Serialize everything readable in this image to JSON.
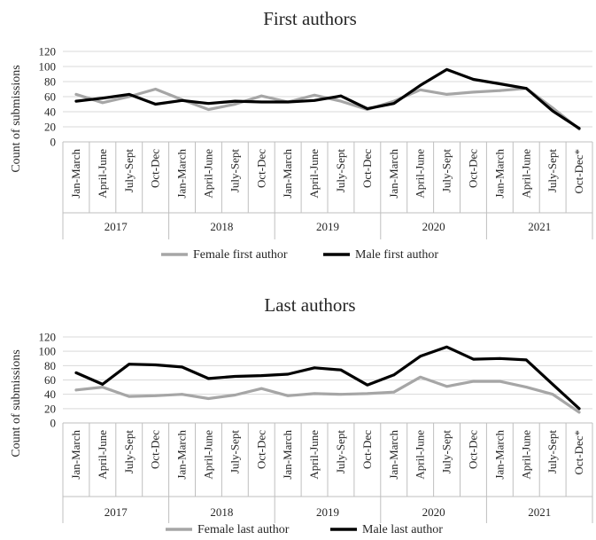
{
  "chart_data": [
    {
      "type": "line",
      "title": "First authors",
      "xlabel": "",
      "ylabel": "Count of submissions",
      "ylim": [
        0,
        120
      ],
      "yticks": [
        0,
        20,
        40,
        60,
        80,
        100,
        120
      ],
      "categories": [
        "Jan-March",
        "April-June",
        "July-Sept",
        "Oct-Dec",
        "Jan-March",
        "April-June",
        "July-Sept",
        "Oct-Dec",
        "Jan-March",
        "April-June",
        "July-Sept",
        "Oct-Dec",
        "Jan-March",
        "April-June",
        "July-Sept",
        "Oct-Dec",
        "Jan-March",
        "April-June",
        "July-Sept",
        "Oct-Dec*"
      ],
      "groups": [
        "2017",
        "2018",
        "2019",
        "2020",
        "2021"
      ],
      "grid": true,
      "legend_position": "bottom",
      "series": [
        {
          "name": "Female first author",
          "color": "#a6a6a6",
          "values": [
            63,
            52,
            60,
            70,
            56,
            43,
            50,
            61,
            53,
            62,
            54,
            43,
            54,
            69,
            63,
            66,
            68,
            71,
            45,
            17
          ]
        },
        {
          "name": "Male first author",
          "color": "#000000",
          "values": [
            54,
            58,
            63,
            50,
            55,
            51,
            54,
            53,
            53,
            55,
            61,
            44,
            51,
            75,
            96,
            83,
            77,
            71,
            41,
            18
          ]
        }
      ]
    },
    {
      "type": "line",
      "title": "Last authors",
      "xlabel": "",
      "ylabel": "Count of submissions",
      "ylim": [
        0,
        120
      ],
      "yticks": [
        0,
        20,
        40,
        60,
        80,
        100,
        120
      ],
      "categories": [
        "Jan-March",
        "April-June",
        "July-Sept",
        "Oct-Dec",
        "Jan-March",
        "April-June",
        "July-Sept",
        "Oct-Dec",
        "Jan-March",
        "April-June",
        "July-Sept",
        "Oct-Dec",
        "Jan-March",
        "April-June",
        "July-Sept",
        "Oct-Dec",
        "Jan-March",
        "April-June",
        "July-Sept",
        "Oct-Dec*"
      ],
      "groups": [
        "2017",
        "2018",
        "2019",
        "2020",
        "2021"
      ],
      "grid": true,
      "legend_position": "bottom",
      "series": [
        {
          "name": "Female  last author",
          "color": "#a6a6a6",
          "values": [
            46,
            50,
            37,
            38,
            40,
            34,
            39,
            48,
            38,
            41,
            40,
            41,
            43,
            64,
            51,
            58,
            58,
            50,
            40,
            15
          ]
        },
        {
          "name": "Male last author",
          "color": "#000000",
          "values": [
            70,
            54,
            82,
            81,
            78,
            62,
            65,
            66,
            68,
            77,
            74,
            53,
            67,
            93,
            106,
            89,
            90,
            88,
            54,
            20
          ]
        }
      ]
    }
  ]
}
